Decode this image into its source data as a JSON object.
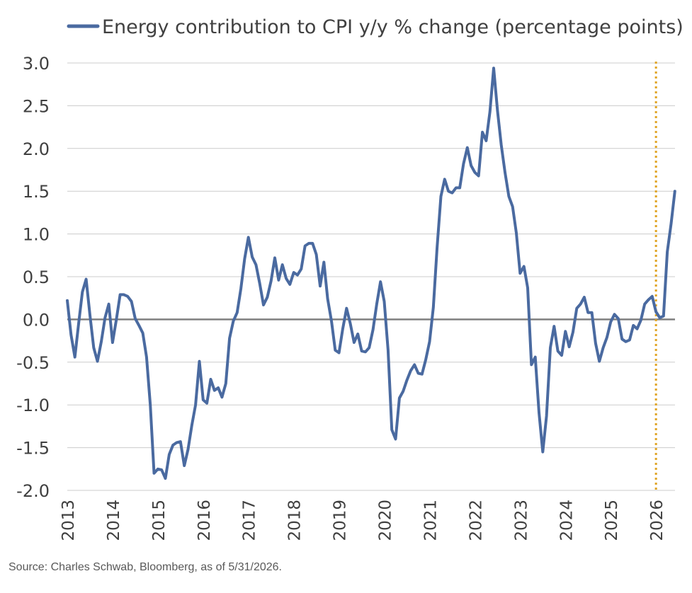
{
  "source": "Source: Charles Schwab, Bloomberg, as of 5/31/2026.",
  "colors": {
    "line": "#4a6aa0",
    "grid": "#cccccc",
    "zero_line": "#7f7f7f",
    "marker": "#e0a526",
    "text": "#404040"
  },
  "chart_data": {
    "type": "line",
    "title": "",
    "xlabel": "",
    "ylabel": "",
    "ylim": [
      -2.0,
      3.0
    ],
    "yticks": [
      "-2.0",
      "-1.5",
      "-1.0",
      "-0.5",
      "0.0",
      "0.5",
      "1.0",
      "1.5",
      "2.0",
      "2.5",
      "3.0"
    ],
    "xticks": [
      "2013",
      "2014",
      "2015",
      "2016",
      "2017",
      "2018",
      "2019",
      "2020",
      "2021",
      "2022",
      "2023",
      "2024",
      "2025",
      "2026"
    ],
    "grid": true,
    "legend_placement": "top",
    "reference_line": {
      "style": "dotted",
      "color": "#e0a526",
      "x": "2026-01"
    },
    "series": [
      {
        "name": "Energy contribution to CPI y/y % change (percentage points)",
        "color": "#4a6aa0",
        "points": [
          [
            "2013-01",
            0.22
          ],
          [
            "2013-02",
            -0.18
          ],
          [
            "2013-03",
            -0.44
          ],
          [
            "2013-04",
            -0.05
          ],
          [
            "2013-05",
            0.32
          ],
          [
            "2013-06",
            0.47
          ],
          [
            "2013-07",
            0.05
          ],
          [
            "2013-08",
            -0.33
          ],
          [
            "2013-09",
            -0.49
          ],
          [
            "2013-10",
            -0.26
          ],
          [
            "2013-11",
            0.02
          ],
          [
            "2013-12",
            0.18
          ],
          [
            "2014-01",
            -0.27
          ],
          [
            "2014-02",
            0.0
          ],
          [
            "2014-03",
            0.29
          ],
          [
            "2014-04",
            0.29
          ],
          [
            "2014-05",
            0.27
          ],
          [
            "2014-06",
            0.21
          ],
          [
            "2014-07",
            0.01
          ],
          [
            "2014-08",
            -0.07
          ],
          [
            "2014-09",
            -0.16
          ],
          [
            "2014-10",
            -0.44
          ],
          [
            "2014-11",
            -1.0
          ],
          [
            "2014-12",
            -1.8
          ],
          [
            "2015-01",
            -1.75
          ],
          [
            "2015-02",
            -1.76
          ],
          [
            "2015-03",
            -1.86
          ],
          [
            "2015-04",
            -1.58
          ],
          [
            "2015-05",
            -1.47
          ],
          [
            "2015-06",
            -1.44
          ],
          [
            "2015-07",
            -1.43
          ],
          [
            "2015-08",
            -1.71
          ],
          [
            "2015-09",
            -1.52
          ],
          [
            "2015-10",
            -1.24
          ],
          [
            "2015-11",
            -1.0
          ],
          [
            "2015-12",
            -0.49
          ],
          [
            "2016-01",
            -0.94
          ],
          [
            "2016-02",
            -0.98
          ],
          [
            "2016-03",
            -0.7
          ],
          [
            "2016-04",
            -0.83
          ],
          [
            "2016-05",
            -0.8
          ],
          [
            "2016-06",
            -0.91
          ],
          [
            "2016-07",
            -0.75
          ],
          [
            "2016-08",
            -0.22
          ],
          [
            "2016-09",
            -0.02
          ],
          [
            "2016-10",
            0.08
          ],
          [
            "2016-11",
            0.36
          ],
          [
            "2016-12",
            0.71
          ],
          [
            "2017-01",
            0.96
          ],
          [
            "2017-02",
            0.73
          ],
          [
            "2017-03",
            0.64
          ],
          [
            "2017-04",
            0.42
          ],
          [
            "2017-05",
            0.17
          ],
          [
            "2017-06",
            0.26
          ],
          [
            "2017-07",
            0.45
          ],
          [
            "2017-08",
            0.72
          ],
          [
            "2017-09",
            0.46
          ],
          [
            "2017-10",
            0.64
          ],
          [
            "2017-11",
            0.48
          ],
          [
            "2017-12",
            0.41
          ],
          [
            "2018-01",
            0.55
          ],
          [
            "2018-02",
            0.52
          ],
          [
            "2018-03",
            0.59
          ],
          [
            "2018-04",
            0.86
          ],
          [
            "2018-05",
            0.89
          ],
          [
            "2018-06",
            0.89
          ],
          [
            "2018-07",
            0.76
          ],
          [
            "2018-08",
            0.39
          ],
          [
            "2018-09",
            0.67
          ],
          [
            "2018-10",
            0.24
          ],
          [
            "2018-11",
            -0.02
          ],
          [
            "2018-12",
            -0.36
          ],
          [
            "2019-01",
            -0.39
          ],
          [
            "2019-02",
            -0.11
          ],
          [
            "2019-03",
            0.13
          ],
          [
            "2019-04",
            -0.05
          ],
          [
            "2019-05",
            -0.27
          ],
          [
            "2019-06",
            -0.17
          ],
          [
            "2019-07",
            -0.37
          ],
          [
            "2019-08",
            -0.38
          ],
          [
            "2019-09",
            -0.33
          ],
          [
            "2019-10",
            -0.12
          ],
          [
            "2019-11",
            0.18
          ],
          [
            "2019-12",
            0.44
          ],
          [
            "2020-01",
            0.21
          ],
          [
            "2020-02",
            -0.36
          ],
          [
            "2020-03",
            -1.29
          ],
          [
            "2020-04",
            -1.4
          ],
          [
            "2020-05",
            -0.92
          ],
          [
            "2020-06",
            -0.84
          ],
          [
            "2020-07",
            -0.71
          ],
          [
            "2020-08",
            -0.6
          ],
          [
            "2020-09",
            -0.53
          ],
          [
            "2020-10",
            -0.63
          ],
          [
            "2020-11",
            -0.64
          ],
          [
            "2020-12",
            -0.47
          ],
          [
            "2021-01",
            -0.26
          ],
          [
            "2021-02",
            0.14
          ],
          [
            "2021-03",
            0.84
          ],
          [
            "2021-04",
            1.44
          ],
          [
            "2021-05",
            1.64
          ],
          [
            "2021-06",
            1.5
          ],
          [
            "2021-07",
            1.48
          ],
          [
            "2021-08",
            1.54
          ],
          [
            "2021-09",
            1.54
          ],
          [
            "2021-10",
            1.82
          ],
          [
            "2021-11",
            2.01
          ],
          [
            "2021-12",
            1.8
          ],
          [
            "2022-01",
            1.72
          ],
          [
            "2022-02",
            1.68
          ],
          [
            "2022-03",
            2.19
          ],
          [
            "2022-04",
            2.09
          ],
          [
            "2022-05",
            2.43
          ],
          [
            "2022-06",
            2.94
          ],
          [
            "2022-07",
            2.44
          ],
          [
            "2022-08",
            2.04
          ],
          [
            "2022-09",
            1.72
          ],
          [
            "2022-10",
            1.44
          ],
          [
            "2022-11",
            1.32
          ],
          [
            "2022-12",
            1.01
          ],
          [
            "2023-01",
            0.54
          ],
          [
            "2023-02",
            0.62
          ],
          [
            "2023-03",
            0.37
          ],
          [
            "2023-04",
            -0.53
          ],
          [
            "2023-05",
            -0.44
          ],
          [
            "2023-06",
            -1.09
          ],
          [
            "2023-07",
            -1.55
          ],
          [
            "2023-08",
            -1.13
          ],
          [
            "2023-09",
            -0.33
          ],
          [
            "2023-10",
            -0.08
          ],
          [
            "2023-11",
            -0.37
          ],
          [
            "2023-12",
            -0.42
          ],
          [
            "2024-01",
            -0.14
          ],
          [
            "2024-02",
            -0.32
          ],
          [
            "2024-03",
            -0.15
          ],
          [
            "2024-04",
            0.13
          ],
          [
            "2024-05",
            0.18
          ],
          [
            "2024-06",
            0.26
          ],
          [
            "2024-07",
            0.08
          ],
          [
            "2024-08",
            0.08
          ],
          [
            "2024-09",
            -0.28
          ],
          [
            "2024-10",
            -0.49
          ],
          [
            "2024-11",
            -0.33
          ],
          [
            "2024-12",
            -0.21
          ],
          [
            "2025-01",
            -0.03
          ],
          [
            "2025-02",
            0.06
          ],
          [
            "2025-03",
            0.01
          ],
          [
            "2025-04",
            -0.23
          ],
          [
            "2025-05",
            -0.26
          ],
          [
            "2025-06",
            -0.24
          ],
          [
            "2025-07",
            -0.07
          ],
          [
            "2025-08",
            -0.11
          ],
          [
            "2025-09",
            -0.01
          ],
          [
            "2025-10",
            0.18
          ],
          [
            "2025-11",
            0.23
          ],
          [
            "2025-12",
            0.27
          ],
          [
            "2026-01",
            0.09
          ],
          [
            "2026-02",
            0.02
          ],
          [
            "2026-03",
            0.04
          ],
          [
            "2026-04",
            0.79
          ],
          [
            "2026-05",
            1.12
          ],
          [
            "2026-06",
            1.5
          ]
        ]
      }
    ]
  }
}
